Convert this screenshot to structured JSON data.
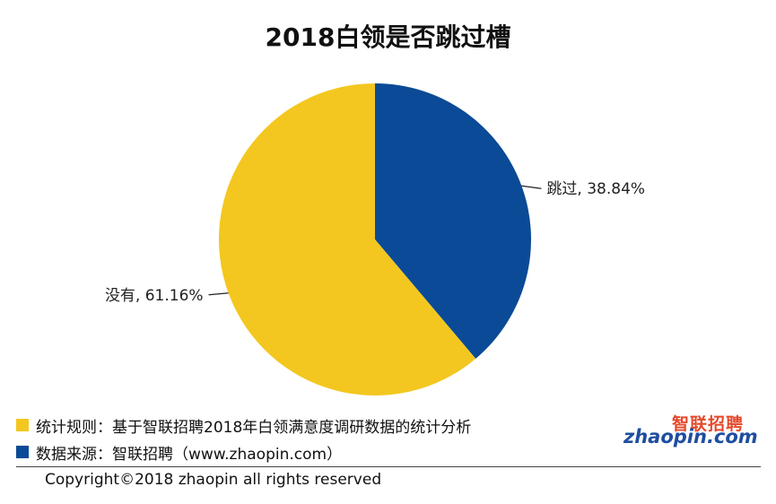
{
  "chart_data": {
    "type": "pie",
    "title": "2018白领是否跳过槽",
    "slices": [
      {
        "label": "跳过, 38.84%",
        "value": 38.84,
        "color": "#0b4a96"
      },
      {
        "label": "没有, 61.16%",
        "value": 61.16,
        "color": "#f3c71f"
      }
    ],
    "legend": "bottom-left"
  },
  "notes": [
    {
      "text": "统计规则：基于智联招聘2018年白领满意度调研数据的统计分析",
      "color": "#f3c71f"
    },
    {
      "text": "数据来源：智联招聘（www.zhaopin.com）",
      "color": "#0b4a96"
    }
  ],
  "footer": {
    "copyright": "Copyright©2018 zhaopin all rights reserved"
  },
  "logo": {
    "cn": "智联招聘",
    "en": "zhaopin.com"
  }
}
